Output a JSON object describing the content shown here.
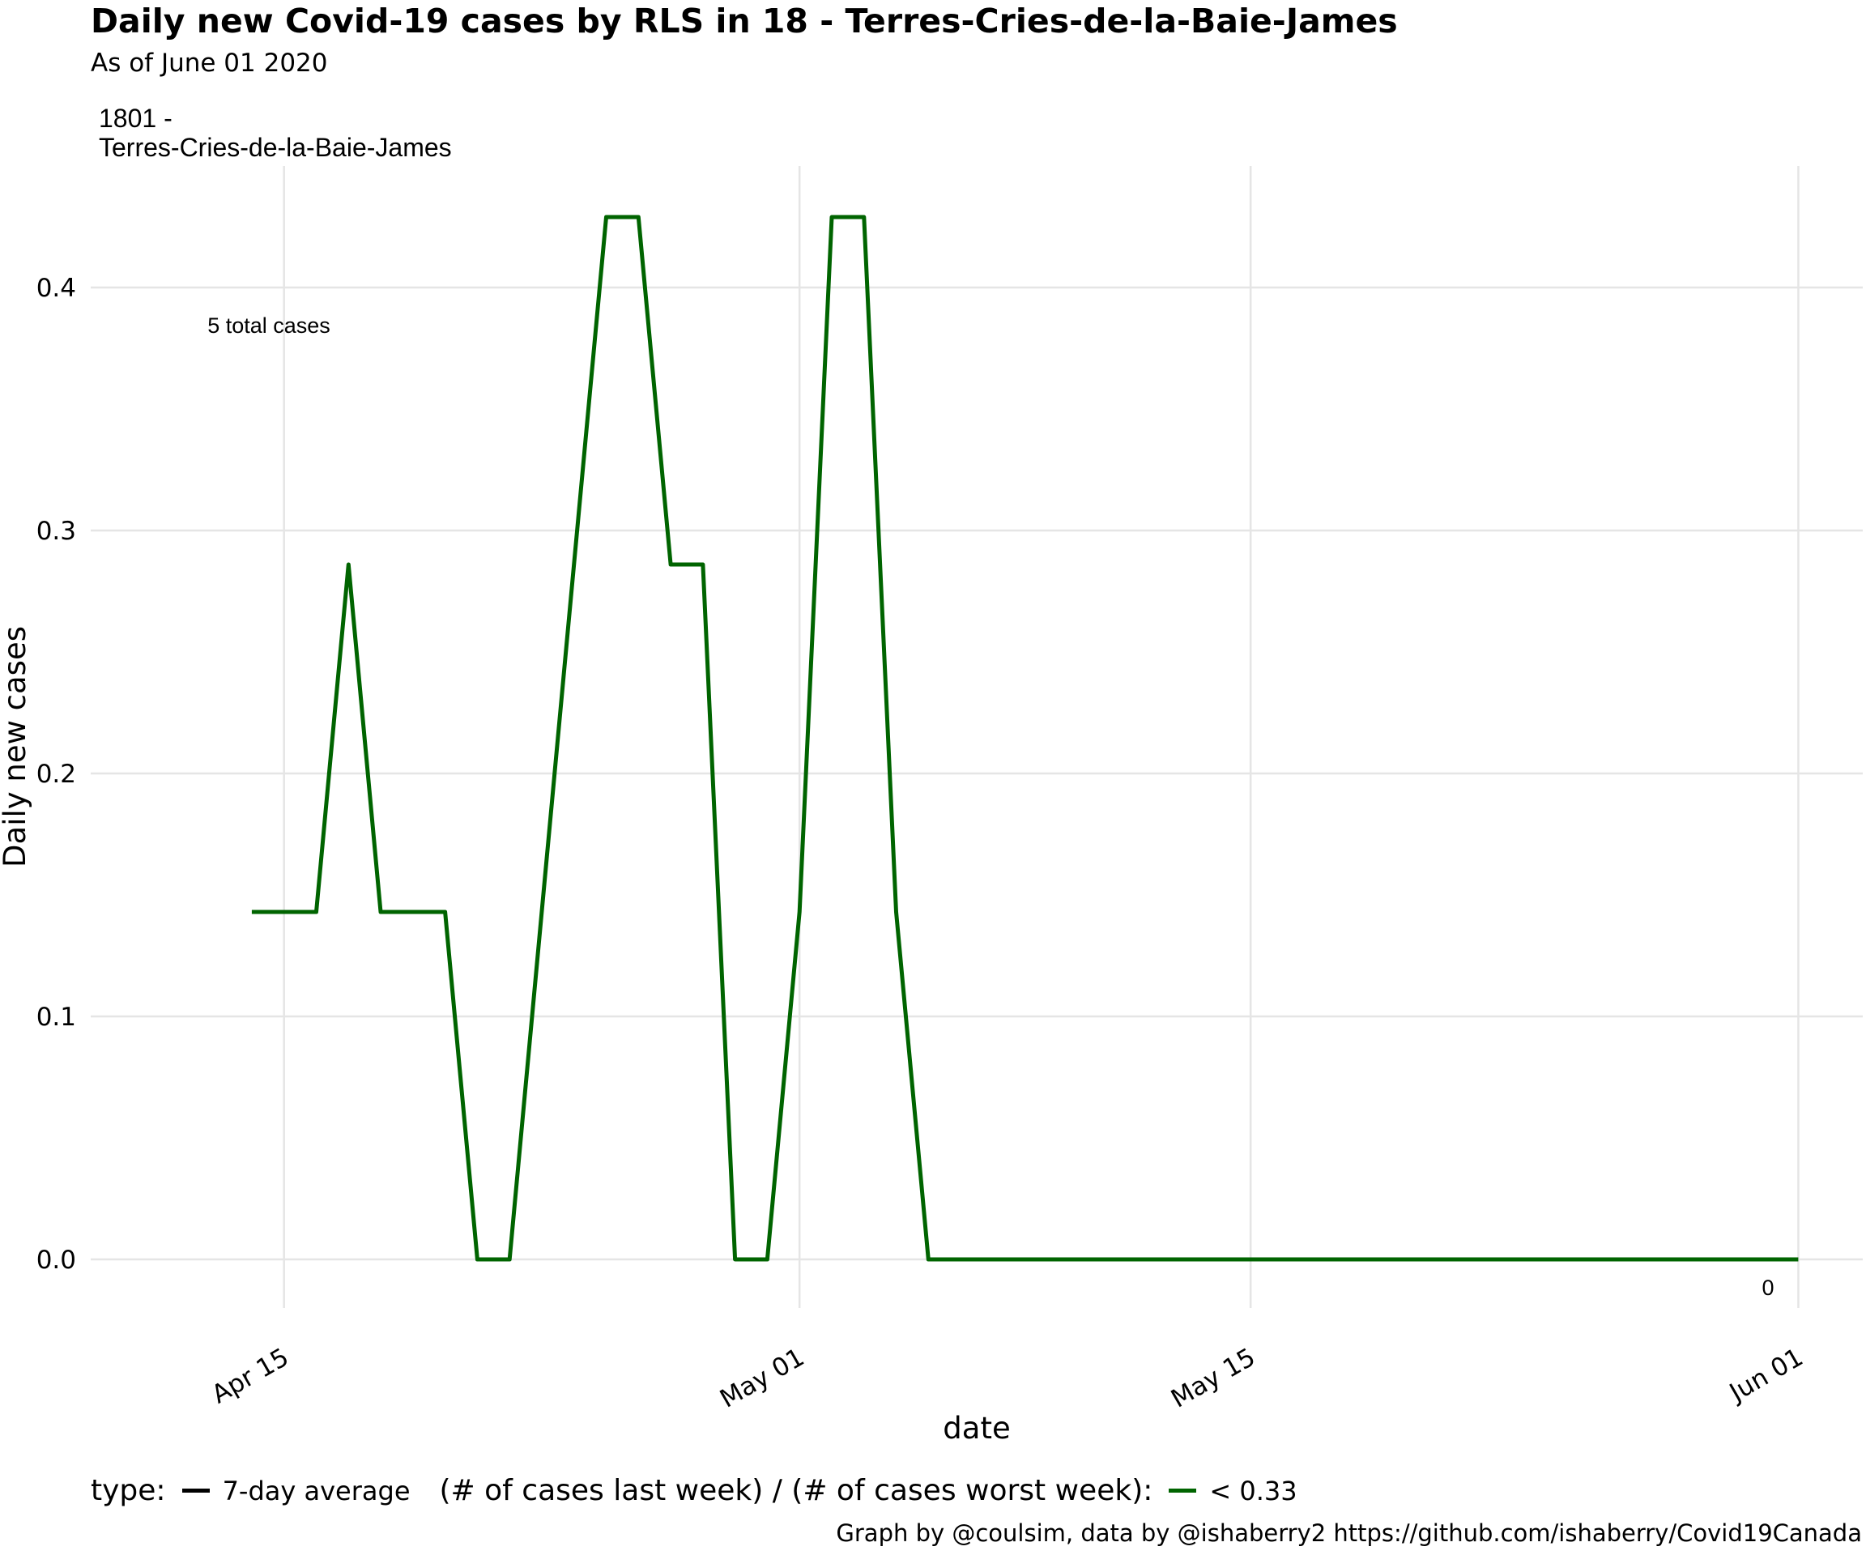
{
  "chart_data": {
    "type": "line",
    "title": "Daily new Covid-19 cases by RLS in 18 - Terres-Cries-de-la-Baie-James",
    "subtitle": "As of June 01 2020",
    "facet_label_line1": "1801 -",
    "facet_label_line2": "Terres-Cries-de-la-Baie-James",
    "annotation": "5 total cases",
    "end_label": "0",
    "xlabel": "date",
    "ylabel": "Daily new cases",
    "x_ticks": [
      "2020-04-15",
      "2020-05-01",
      "2020-05-15",
      "2020-06-01"
    ],
    "x_tick_labels": [
      "Apr 15",
      "May 01",
      "May 15",
      "Jun 01"
    ],
    "xlim": [
      "2020-04-09",
      "2020-06-03"
    ],
    "y_ticks": [
      0.0,
      0.1,
      0.2,
      0.3,
      0.4
    ],
    "y_tick_labels": [
      "0.0",
      "0.1",
      "0.2",
      "0.3",
      "0.4"
    ],
    "ylim": [
      -0.02,
      0.45
    ],
    "grid": true,
    "series": [
      {
        "color": "#006400",
        "points": [
          [
            "2020-04-14",
            0.143
          ],
          [
            "2020-04-15",
            0.143
          ],
          [
            "2020-04-16",
            0.143
          ],
          [
            "2020-04-17",
            0.286
          ],
          [
            "2020-04-18",
            0.143
          ],
          [
            "2020-04-19",
            0.143
          ],
          [
            "2020-04-20",
            0.143
          ],
          [
            "2020-04-21",
            0.0
          ],
          [
            "2020-04-22",
            0.0
          ],
          [
            "2020-04-23",
            0.143
          ],
          [
            "2020-04-24",
            0.286
          ],
          [
            "2020-04-25",
            0.429
          ],
          [
            "2020-04-26",
            0.429
          ],
          [
            "2020-04-27",
            0.286
          ],
          [
            "2020-04-28",
            0.286
          ],
          [
            "2020-04-29",
            0.0
          ],
          [
            "2020-04-30",
            0.0
          ],
          [
            "2020-05-01",
            0.143
          ],
          [
            "2020-05-02",
            0.429
          ],
          [
            "2020-05-03",
            0.429
          ],
          [
            "2020-05-04",
            0.143
          ],
          [
            "2020-05-05",
            0.0
          ],
          [
            "2020-05-10",
            0.0
          ],
          [
            "2020-05-15",
            0.0
          ],
          [
            "2020-05-20",
            0.0
          ],
          [
            "2020-05-25",
            0.0
          ],
          [
            "2020-05-31",
            0.0
          ],
          [
            "2020-06-01",
            0.0
          ]
        ]
      }
    ]
  },
  "legend": {
    "type_title": "type:",
    "type_item": "7-day average",
    "type_color": "#000000",
    "ratio_title": "(# of cases last week) / (# of cases worst week):",
    "ratio_item": "< 0.33",
    "ratio_color": "#006400"
  },
  "caption": "Graph by @coulsim, data by @ishaberry2 https://github.com/ishaberry/Covid19Canada"
}
